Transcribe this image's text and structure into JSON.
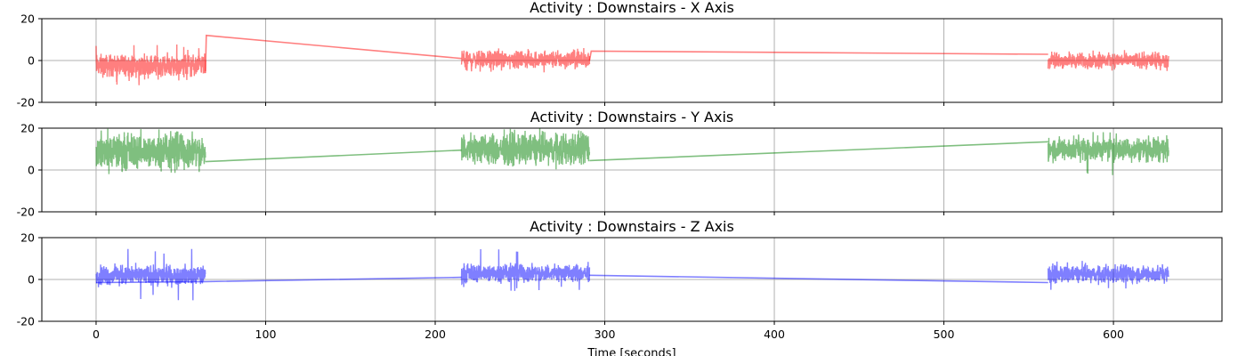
{
  "chart_data": [
    {
      "type": "line",
      "title": "Activity : Downstairs - X Axis",
      "color": "#ff0000",
      "ylim": [
        -20,
        20
      ],
      "xlim": [
        -32,
        664
      ],
      "xticks": [
        0,
        100,
        200,
        300,
        400,
        500,
        600
      ],
      "yticks": [
        -20,
        0,
        20
      ],
      "grid": true,
      "segments": [
        {
          "x0": 0,
          "x1": 64.5,
          "mean": -2.5,
          "amp": 3.2,
          "spike": 8,
          "dip": -12
        },
        {
          "x0": 215.5,
          "x1": 291,
          "mean": 0.5,
          "amp": 2.5,
          "spike": 6,
          "dip": -6
        },
        {
          "x0": 561.5,
          "x1": 632.5,
          "mean": 0,
          "amp": 2.2,
          "spike": 5,
          "dip": -5
        }
      ],
      "connectors": [
        {
          "x": [
            64.5,
            65,
            215.5
          ],
          "y": [
            -6,
            12,
            1
          ]
        },
        {
          "x": [
            291,
            292,
            561.5
          ],
          "y": [
            0,
            4.5,
            3
          ]
        }
      ]
    },
    {
      "type": "line",
      "title": "Activity : Downstairs - Y Axis",
      "color": "#008000",
      "ylim": [
        -20,
        20
      ],
      "xlim": [
        -32,
        664
      ],
      "xticks": [
        0,
        100,
        200,
        300,
        400,
        500,
        600
      ],
      "yticks": [
        -20,
        0,
        20
      ],
      "grid": true,
      "segments": [
        {
          "x0": 0,
          "x1": 64.5,
          "mean": 9,
          "amp": 5,
          "spike": 20,
          "dip": -2
        },
        {
          "x0": 215.5,
          "x1": 291,
          "mean": 10,
          "amp": 4.5,
          "spike": 20,
          "dip": 2
        },
        {
          "x0": 561.5,
          "x1": 632.5,
          "mean": 10,
          "amp": 3.5,
          "spike": 20,
          "dip": -3
        }
      ],
      "connectors": [
        {
          "x": [
            64.5,
            215.5
          ],
          "y": [
            4,
            9.5
          ]
        },
        {
          "x": [
            291,
            561.5
          ],
          "y": [
            4.5,
            13.5
          ]
        }
      ]
    },
    {
      "type": "line",
      "title": "Activity : Downstairs - Z Axis",
      "color": "#0000ff",
      "xlabel": "Time [seconds]",
      "ylim": [
        -20,
        20
      ],
      "xlim": [
        -32,
        664
      ],
      "xticks": [
        0,
        100,
        200,
        300,
        400,
        500,
        600
      ],
      "yticks": [
        -20,
        0,
        20
      ],
      "grid": true,
      "segments": [
        {
          "x0": 0,
          "x1": 64.5,
          "mean": 2,
          "amp": 2.8,
          "spike": 15,
          "dip": -10
        },
        {
          "x0": 215.5,
          "x1": 291,
          "mean": 3,
          "amp": 2.6,
          "spike": 15,
          "dip": -6
        },
        {
          "x0": 561.5,
          "x1": 632.5,
          "mean": 2.5,
          "amp": 2.4,
          "spike": 9,
          "dip": -5
        }
      ],
      "connectors": [
        {
          "x": [
            0,
            64.5,
            215.5
          ],
          "y": [
            -1.5,
            -1,
            1
          ]
        },
        {
          "x": [
            291,
            561.5
          ],
          "y": [
            2,
            -1.5
          ]
        }
      ]
    }
  ]
}
